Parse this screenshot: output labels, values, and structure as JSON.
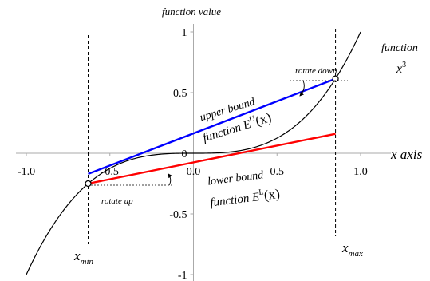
{
  "chart_data": {
    "type": "line",
    "title": "",
    "xlabel": "x axis",
    "ylabel": "function value",
    "xlim": [
      -1.0,
      1.0
    ],
    "ylim": [
      -1.0,
      1.0
    ],
    "x_ticks": [
      -1.0,
      -0.5,
      0.0,
      0.5,
      1.0
    ],
    "x_tick_labels": [
      "-1.0",
      "-0.5",
      "0.0",
      "0.5",
      "1.0"
    ],
    "y_ticks": [
      1,
      0.5,
      0,
      -0.5,
      -1
    ],
    "y_tick_labels": [
      "1",
      "0.5",
      "0",
      "-0.5",
      "-1"
    ],
    "grid": false,
    "x_min": -0.63,
    "x_max": 0.85,
    "series": [
      {
        "name": "function x³",
        "color": "#000000",
        "function": "x^3",
        "x": [
          -1.0,
          -0.9,
          -0.8,
          -0.7,
          -0.63,
          -0.5,
          -0.4,
          -0.3,
          -0.2,
          -0.1,
          0.0,
          0.1,
          0.2,
          0.3,
          0.4,
          0.5,
          0.6,
          0.7,
          0.8,
          0.85,
          0.9,
          1.0
        ],
        "y": [
          -1.0,
          -0.729,
          -0.512,
          -0.343,
          -0.25,
          -0.125,
          -0.064,
          -0.027,
          -0.008,
          -0.001,
          0.0,
          0.001,
          0.008,
          0.027,
          0.064,
          0.125,
          0.216,
          0.343,
          0.512,
          0.614,
          0.729,
          1.0
        ]
      },
      {
        "name": "upper bound E^U(x)",
        "color": "#0000ff",
        "x": [
          -0.63,
          0.85
        ],
        "y": [
          -0.17,
          0.614
        ]
      },
      {
        "name": "lower bound E^L(x)",
        "color": "#ff0000",
        "x": [
          -0.63,
          0.85
        ],
        "y": [
          -0.25,
          0.16
        ]
      }
    ],
    "labels": {
      "y_axis_title": "function value",
      "x_axis_title": "x axis",
      "function_line1": "function",
      "function_line2": "x",
      "function_exp": "3",
      "upper_line1": "upper bound",
      "upper_line2_pre": "function E",
      "upper_sup": "U",
      "upper_arg": "(x)",
      "lower_line1": "lower bound",
      "lower_line2_pre": "function E",
      "lower_sup": "L",
      "lower_arg": "(x)",
      "rotate_down": "rotate down",
      "rotate_up": "rotate up",
      "xmin_x": "x",
      "xmin_sub": "min",
      "xmax_x": "x",
      "xmax_sub": "max"
    }
  }
}
